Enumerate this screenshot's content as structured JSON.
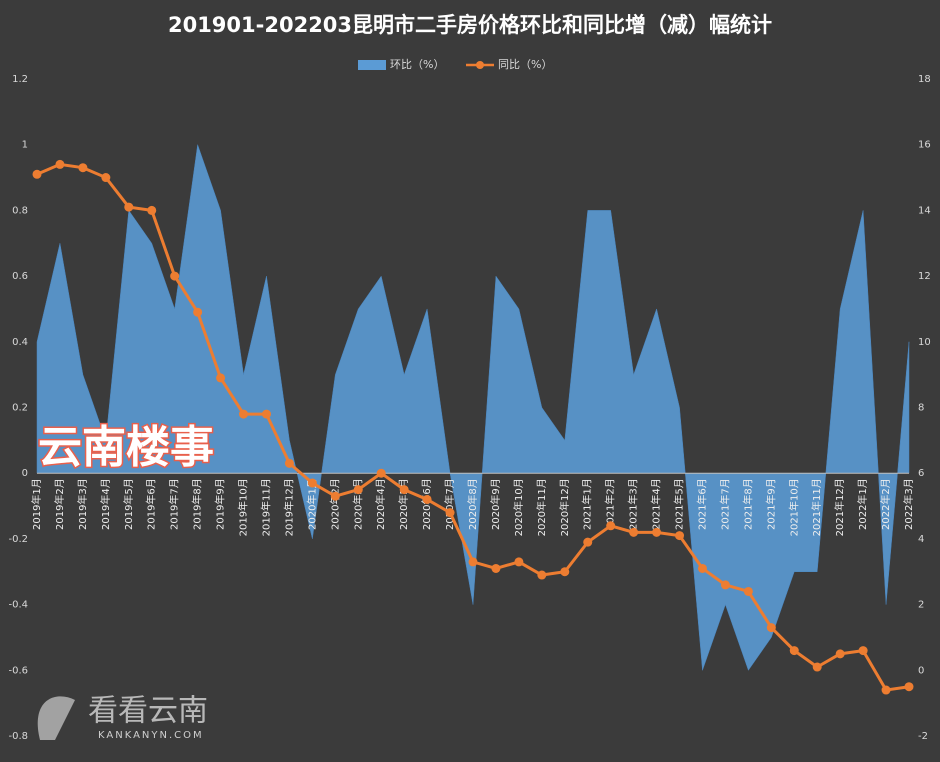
{
  "chart_data": {
    "type": "area-line",
    "title": "201901-202203昆明市二手房价格环比和同比增（减）幅统计",
    "categories": [
      "2019年1月",
      "2019年2月",
      "2019年3月",
      "2019年4月",
      "2019年5月",
      "2019年6月",
      "2019年7月",
      "2019年8月",
      "2019年9月",
      "2019年10月",
      "2019年11月",
      "2019年12月",
      "2020年1月",
      "2020年2月",
      "2020年3月",
      "2020年4月",
      "2020年5月",
      "2020年6月",
      "2020年7月",
      "2020年8月",
      "2020年9月",
      "2020年10月",
      "2020年11月",
      "2020年12月",
      "2021年1月",
      "2021年2月",
      "2021年3月",
      "2021年4月",
      "2021年5月",
      "2021年6月",
      "2021年7月",
      "2021年8月",
      "2021年9月",
      "2021年10月",
      "2021年11月",
      "2021年12月",
      "2022年1月",
      "2022年2月",
      "2022年3月"
    ],
    "series": [
      {
        "name": "环比（%）",
        "color": "#5b9bd5",
        "kind": "area",
        "values": [
          0.4,
          0.7,
          0.3,
          0.1,
          0.8,
          0.7,
          0.5,
          1.0,
          0.8,
          0.3,
          0.6,
          0.1,
          -0.2,
          0.3,
          0.5,
          0.6,
          0.3,
          0.5,
          0.0,
          -0.4,
          0.6,
          0.5,
          0.2,
          0.1,
          0.8,
          0.8,
          0.3,
          0.5,
          0.2,
          -0.6,
          -0.4,
          -0.6,
          -0.5,
          -0.3,
          -0.3,
          0.5,
          0.8,
          -0.4,
          0.4
        ]
      },
      {
        "name": "同比（%）",
        "color": "#ed7d31",
        "kind": "line",
        "axis": "y2",
        "values": [
          15.1,
          15.4,
          15.3,
          15.0,
          14.1,
          14.0,
          12.0,
          10.9,
          8.9,
          7.8,
          7.8,
          6.3,
          5.7,
          5.3,
          5.5,
          6.0,
          5.5,
          5.2,
          4.8,
          3.3,
          3.1,
          3.3,
          2.9,
          3.0,
          3.9,
          4.4,
          4.2,
          4.2,
          4.1,
          3.1,
          2.6,
          2.4,
          1.3,
          0.6,
          0.1,
          0.5,
          0.6,
          -0.6,
          -0.5
        ]
      }
    ],
    "ylim": [
      -0.8,
      1.2
    ],
    "yticks": [
      -0.8,
      -0.6,
      -0.4,
      -0.2,
      0,
      0.2,
      0.4,
      0.6,
      0.8,
      1,
      1.2
    ],
    "y2lim": [
      -2,
      18
    ],
    "y2ticks": [
      -2,
      0,
      2,
      4,
      6,
      8,
      10,
      12,
      14,
      16,
      18
    ],
    "grid": false,
    "legend": "top",
    "watermarks": [
      "云南楼事",
      "看看云南",
      "KANKANYN.COM"
    ]
  }
}
